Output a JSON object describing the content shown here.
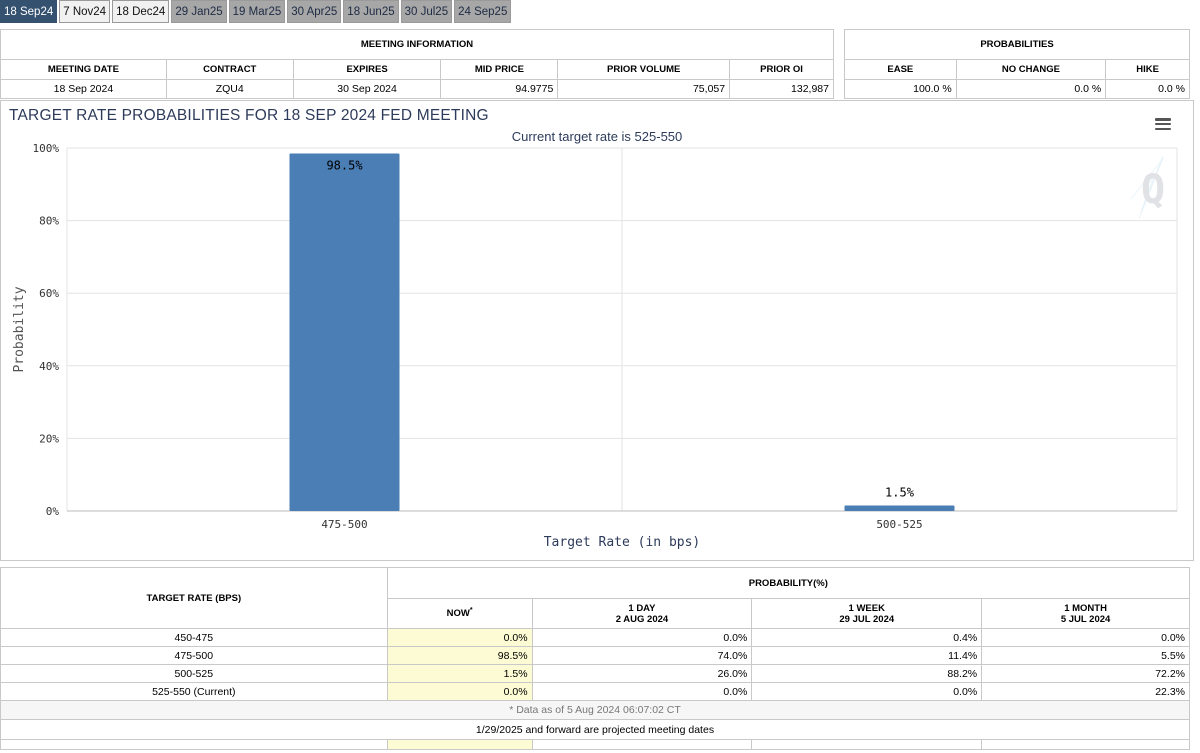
{
  "tabs": [
    "18 Sep24",
    "7 Nov24",
    "18 Dec24",
    "29 Jan25",
    "19 Mar25",
    "30 Apr25",
    "18 Jun25",
    "30 Jul25",
    "24 Sep25"
  ],
  "meeting_info": {
    "title": "MEETING INFORMATION",
    "headers": [
      "MEETING DATE",
      "CONTRACT",
      "EXPIRES",
      "MID PRICE",
      "PRIOR VOLUME",
      "PRIOR OI"
    ],
    "values": [
      "18 Sep 2024",
      "ZQU4",
      "30 Sep 2024",
      "94.9775",
      "75,057",
      "132,987"
    ]
  },
  "probabilities": {
    "title": "PROBABILITIES",
    "headers": [
      "EASE",
      "NO CHANGE",
      "HIKE"
    ],
    "values": [
      "100.0 %",
      "0.0 %",
      "0.0 %"
    ]
  },
  "chart": {
    "title": "TARGET RATE PROBABILITIES FOR 18 SEP 2024 FED MEETING",
    "subtitle": "Current target rate is 525-550",
    "logo": "Q"
  },
  "chart_data": {
    "type": "bar",
    "title": "TARGET RATE PROBABILITIES FOR 18 SEP 2024 FED MEETING",
    "subtitle": "Current target rate is 525-550",
    "categories": [
      "475-500",
      "500-525"
    ],
    "values": [
      98.5,
      1.5
    ],
    "data_labels": [
      "98.5%",
      "1.5%"
    ],
    "xlabel": "Target Rate (in bps)",
    "ylabel": "Probability",
    "ylim": [
      0,
      100
    ],
    "yticks": [
      "0%",
      "20%",
      "40%",
      "60%",
      "80%",
      "100%"
    ],
    "color": "#4a7eb5"
  },
  "prob_table": {
    "col_target": "TARGET RATE (BPS)",
    "col_prob": "PROBABILITY(%)",
    "col_now": "NOW",
    "col_now_mark": "*",
    "cols": [
      {
        "label": "1 DAY",
        "date": "2 AUG 2024"
      },
      {
        "label": "1 WEEK",
        "date": "29 JUL 2024"
      },
      {
        "label": "1 MONTH",
        "date": "5 JUL 2024"
      }
    ],
    "rows": [
      {
        "rate": "450-475",
        "now": "0.0%",
        "d1": "0.0%",
        "w1": "0.4%",
        "m1": "0.0%"
      },
      {
        "rate": "475-500",
        "now": "98.5%",
        "d1": "74.0%",
        "w1": "11.4%",
        "m1": "5.5%"
      },
      {
        "rate": "500-525",
        "now": "1.5%",
        "d1": "26.0%",
        "w1": "88.2%",
        "m1": "72.2%"
      },
      {
        "rate": "525-550 (Current)",
        "now": "0.0%",
        "d1": "0.0%",
        "w1": "0.0%",
        "m1": "22.3%"
      }
    ],
    "note": "* Data as of 5 Aug 2024 06:07:02 CT",
    "footer": "1/29/2025 and forward are projected meeting dates"
  }
}
